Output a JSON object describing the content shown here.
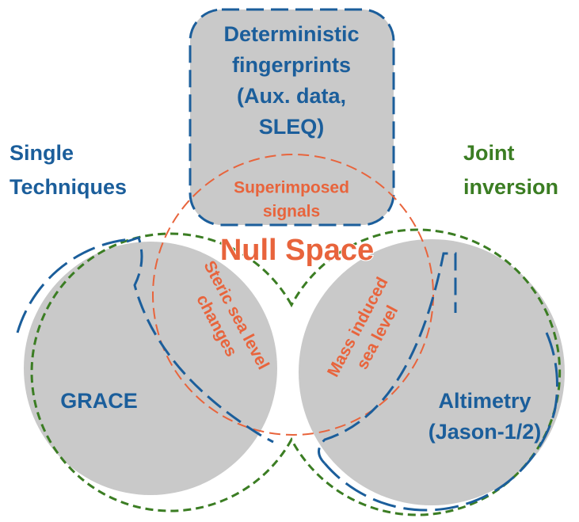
{
  "top_box": {
    "lines": [
      "Deterministic",
      "fingerprints",
      "(Aux. data,",
      "SLEQ)"
    ]
  },
  "left_label": {
    "lines": [
      "Single",
      "Techniques"
    ]
  },
  "right_label": {
    "lines": [
      "Joint",
      "inversion"
    ]
  },
  "overlap_top": {
    "lines": [
      "Superimposed",
      "signals"
    ]
  },
  "center_label": "Null Space",
  "overlap_left": {
    "lines": [
      "Steric sea level",
      "changes"
    ]
  },
  "overlap_right": {
    "lines": [
      "Mass induced",
      "sea level"
    ]
  },
  "left_circle": {
    "label": "GRACE"
  },
  "right_circle": {
    "lines": [
      "Altimetry",
      "(Jason-1/2)"
    ]
  }
}
